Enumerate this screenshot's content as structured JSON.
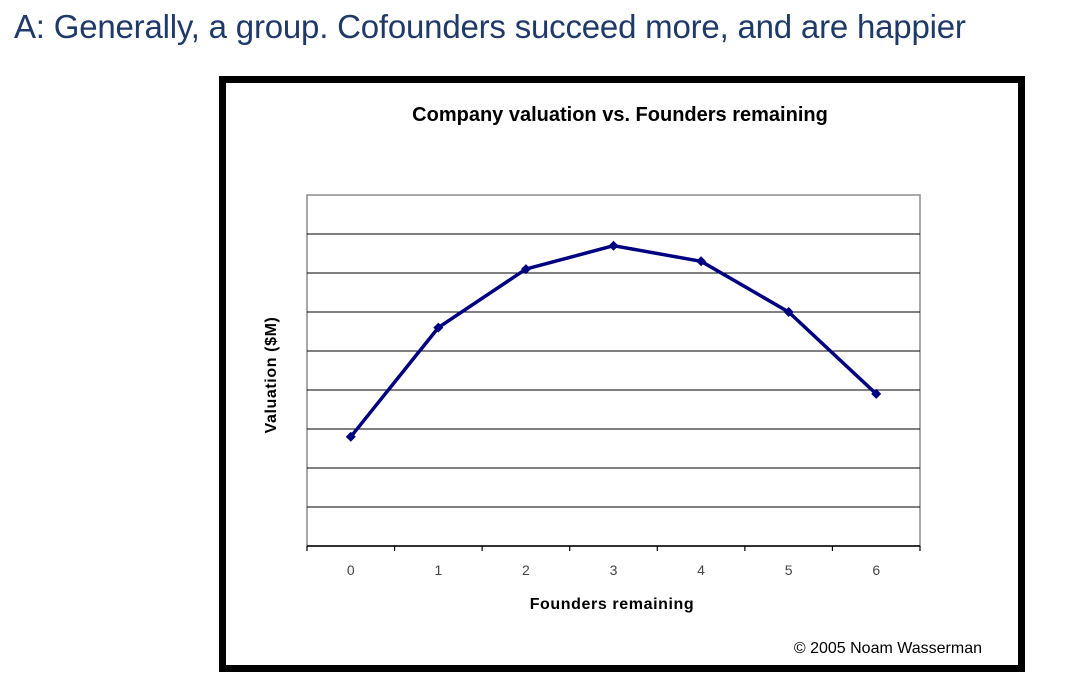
{
  "headline": "A: Generally, a group. Cofounders succeed more, and are happier",
  "copyright": "© 2005 Noam Wasserman",
  "colors": {
    "headline": "#1f3a68",
    "series_line": "#000080",
    "gridline": "#000000",
    "frame": "#000000"
  },
  "chart_data": {
    "type": "line",
    "title": "Company valuation vs. Founders remaining",
    "xlabel": "Founders remaining",
    "ylabel": "Valuation ($M)",
    "x": [
      0,
      1,
      2,
      3,
      4,
      5,
      6
    ],
    "series": [
      {
        "values": [
          2.8,
          5.6,
          7.1,
          7.7,
          7.3,
          6.0,
          3.9
        ]
      }
    ],
    "ylim": [
      0,
      9
    ],
    "y_tick_labels_shown": false,
    "grid": true,
    "marker": "diamond",
    "legend": "none"
  }
}
